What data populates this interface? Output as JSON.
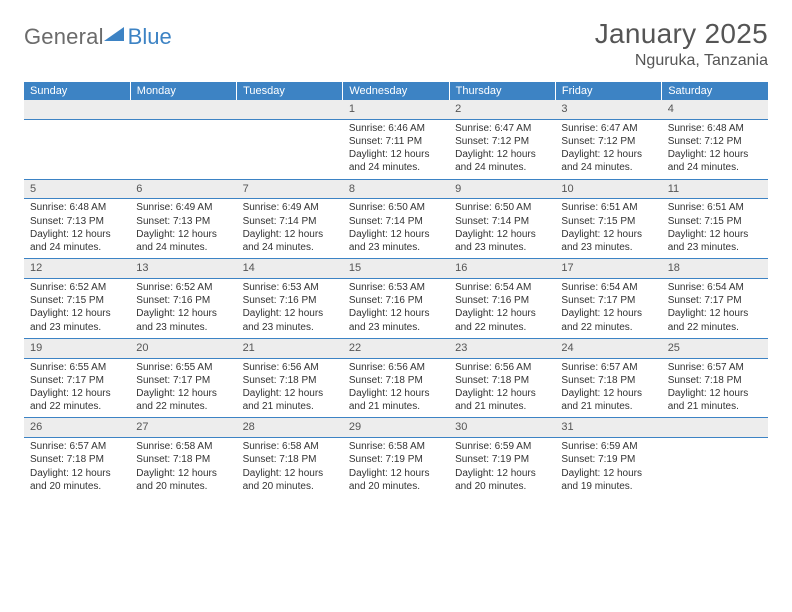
{
  "logo": {
    "text1": "General",
    "text2": "Blue"
  },
  "title": "January 2025",
  "location": "Nguruka, Tanzania",
  "colors": {
    "header_bg": "#3d83c4",
    "header_text": "#ffffff",
    "daynum_bg": "#ededed",
    "row_border": "#3d83c4",
    "title_color": "#555555",
    "body_text": "#333333",
    "logo_grey": "#6b6b6b",
    "logo_blue": "#3d83c4"
  },
  "days_of_week": [
    "Sunday",
    "Monday",
    "Tuesday",
    "Wednesday",
    "Thursday",
    "Friday",
    "Saturday"
  ],
  "weeks": [
    [
      null,
      null,
      null,
      {
        "n": "1",
        "sunrise": "Sunrise: 6:46 AM",
        "sunset": "Sunset: 7:11 PM",
        "daylight": "Daylight: 12 hours and 24 minutes."
      },
      {
        "n": "2",
        "sunrise": "Sunrise: 6:47 AM",
        "sunset": "Sunset: 7:12 PM",
        "daylight": "Daylight: 12 hours and 24 minutes."
      },
      {
        "n": "3",
        "sunrise": "Sunrise: 6:47 AM",
        "sunset": "Sunset: 7:12 PM",
        "daylight": "Daylight: 12 hours and 24 minutes."
      },
      {
        "n": "4",
        "sunrise": "Sunrise: 6:48 AM",
        "sunset": "Sunset: 7:12 PM",
        "daylight": "Daylight: 12 hours and 24 minutes."
      }
    ],
    [
      {
        "n": "5",
        "sunrise": "Sunrise: 6:48 AM",
        "sunset": "Sunset: 7:13 PM",
        "daylight": "Daylight: 12 hours and 24 minutes."
      },
      {
        "n": "6",
        "sunrise": "Sunrise: 6:49 AM",
        "sunset": "Sunset: 7:13 PM",
        "daylight": "Daylight: 12 hours and 24 minutes."
      },
      {
        "n": "7",
        "sunrise": "Sunrise: 6:49 AM",
        "sunset": "Sunset: 7:14 PM",
        "daylight": "Daylight: 12 hours and 24 minutes."
      },
      {
        "n": "8",
        "sunrise": "Sunrise: 6:50 AM",
        "sunset": "Sunset: 7:14 PM",
        "daylight": "Daylight: 12 hours and 23 minutes."
      },
      {
        "n": "9",
        "sunrise": "Sunrise: 6:50 AM",
        "sunset": "Sunset: 7:14 PM",
        "daylight": "Daylight: 12 hours and 23 minutes."
      },
      {
        "n": "10",
        "sunrise": "Sunrise: 6:51 AM",
        "sunset": "Sunset: 7:15 PM",
        "daylight": "Daylight: 12 hours and 23 minutes."
      },
      {
        "n": "11",
        "sunrise": "Sunrise: 6:51 AM",
        "sunset": "Sunset: 7:15 PM",
        "daylight": "Daylight: 12 hours and 23 minutes."
      }
    ],
    [
      {
        "n": "12",
        "sunrise": "Sunrise: 6:52 AM",
        "sunset": "Sunset: 7:15 PM",
        "daylight": "Daylight: 12 hours and 23 minutes."
      },
      {
        "n": "13",
        "sunrise": "Sunrise: 6:52 AM",
        "sunset": "Sunset: 7:16 PM",
        "daylight": "Daylight: 12 hours and 23 minutes."
      },
      {
        "n": "14",
        "sunrise": "Sunrise: 6:53 AM",
        "sunset": "Sunset: 7:16 PM",
        "daylight": "Daylight: 12 hours and 23 minutes."
      },
      {
        "n": "15",
        "sunrise": "Sunrise: 6:53 AM",
        "sunset": "Sunset: 7:16 PM",
        "daylight": "Daylight: 12 hours and 23 minutes."
      },
      {
        "n": "16",
        "sunrise": "Sunrise: 6:54 AM",
        "sunset": "Sunset: 7:16 PM",
        "daylight": "Daylight: 12 hours and 22 minutes."
      },
      {
        "n": "17",
        "sunrise": "Sunrise: 6:54 AM",
        "sunset": "Sunset: 7:17 PM",
        "daylight": "Daylight: 12 hours and 22 minutes."
      },
      {
        "n": "18",
        "sunrise": "Sunrise: 6:54 AM",
        "sunset": "Sunset: 7:17 PM",
        "daylight": "Daylight: 12 hours and 22 minutes."
      }
    ],
    [
      {
        "n": "19",
        "sunrise": "Sunrise: 6:55 AM",
        "sunset": "Sunset: 7:17 PM",
        "daylight": "Daylight: 12 hours and 22 minutes."
      },
      {
        "n": "20",
        "sunrise": "Sunrise: 6:55 AM",
        "sunset": "Sunset: 7:17 PM",
        "daylight": "Daylight: 12 hours and 22 minutes."
      },
      {
        "n": "21",
        "sunrise": "Sunrise: 6:56 AM",
        "sunset": "Sunset: 7:18 PM",
        "daylight": "Daylight: 12 hours and 21 minutes."
      },
      {
        "n": "22",
        "sunrise": "Sunrise: 6:56 AM",
        "sunset": "Sunset: 7:18 PM",
        "daylight": "Daylight: 12 hours and 21 minutes."
      },
      {
        "n": "23",
        "sunrise": "Sunrise: 6:56 AM",
        "sunset": "Sunset: 7:18 PM",
        "daylight": "Daylight: 12 hours and 21 minutes."
      },
      {
        "n": "24",
        "sunrise": "Sunrise: 6:57 AM",
        "sunset": "Sunset: 7:18 PM",
        "daylight": "Daylight: 12 hours and 21 minutes."
      },
      {
        "n": "25",
        "sunrise": "Sunrise: 6:57 AM",
        "sunset": "Sunset: 7:18 PM",
        "daylight": "Daylight: 12 hours and 21 minutes."
      }
    ],
    [
      {
        "n": "26",
        "sunrise": "Sunrise: 6:57 AM",
        "sunset": "Sunset: 7:18 PM",
        "daylight": "Daylight: 12 hours and 20 minutes."
      },
      {
        "n": "27",
        "sunrise": "Sunrise: 6:58 AM",
        "sunset": "Sunset: 7:18 PM",
        "daylight": "Daylight: 12 hours and 20 minutes."
      },
      {
        "n": "28",
        "sunrise": "Sunrise: 6:58 AM",
        "sunset": "Sunset: 7:18 PM",
        "daylight": "Daylight: 12 hours and 20 minutes."
      },
      {
        "n": "29",
        "sunrise": "Sunrise: 6:58 AM",
        "sunset": "Sunset: 7:19 PM",
        "daylight": "Daylight: 12 hours and 20 minutes."
      },
      {
        "n": "30",
        "sunrise": "Sunrise: 6:59 AM",
        "sunset": "Sunset: 7:19 PM",
        "daylight": "Daylight: 12 hours and 20 minutes."
      },
      {
        "n": "31",
        "sunrise": "Sunrise: 6:59 AM",
        "sunset": "Sunset: 7:19 PM",
        "daylight": "Daylight: 12 hours and 19 minutes."
      },
      null
    ]
  ]
}
